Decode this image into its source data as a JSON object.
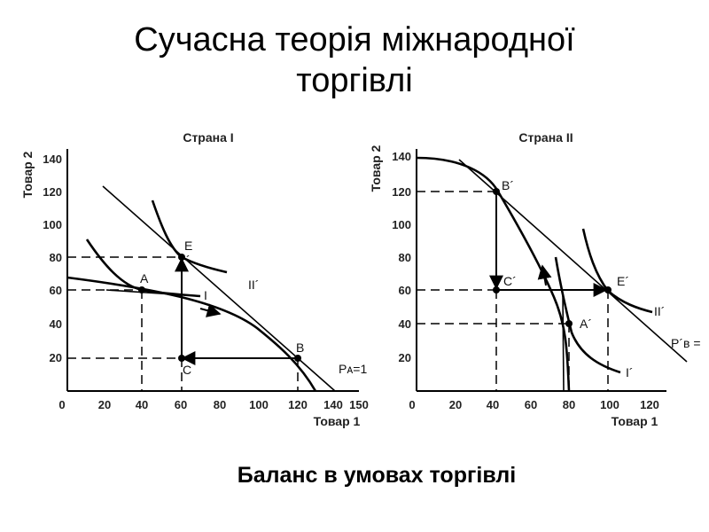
{
  "slide": {
    "title_line1": "Сучасна теорія міжнародної",
    "title_line2": "торгівлі",
    "caption": "Баланс в умовах торгівлі"
  },
  "panel1": {
    "title": "Страна I",
    "y_axis_label": "Товар 2",
    "x_axis_label": "Товар 1",
    "y_ticks": [
      "140",
      "120",
      "100",
      "80",
      "60",
      "40",
      "20"
    ],
    "x_ticks": [
      "0",
      "20",
      "40",
      "60",
      "80",
      "100",
      "120",
      "140",
      "150"
    ],
    "points": {
      "A": "A",
      "E": "E",
      "B": "B",
      "C": "C"
    },
    "curve_labels": {
      "I": "I",
      "II": "II´",
      "price": "Pᴀ=1",
      "prime_mark": "´"
    }
  },
  "panel2": {
    "title": "Страна II",
    "y_axis_label": "Товар 2",
    "x_axis_label": "Товар 1",
    "y_ticks": [
      "140",
      "120",
      "100",
      "80",
      "60",
      "40",
      "20"
    ],
    "x_ticks": [
      "0",
      "20",
      "40",
      "60",
      "80",
      "100",
      "120"
    ],
    "points": {
      "B": "B´",
      "C": "C´",
      "E": "E´",
      "A": "A´"
    },
    "curve_labels": {
      "I": "I´",
      "II": "II´",
      "price": "P´ʙ ="
    }
  }
}
